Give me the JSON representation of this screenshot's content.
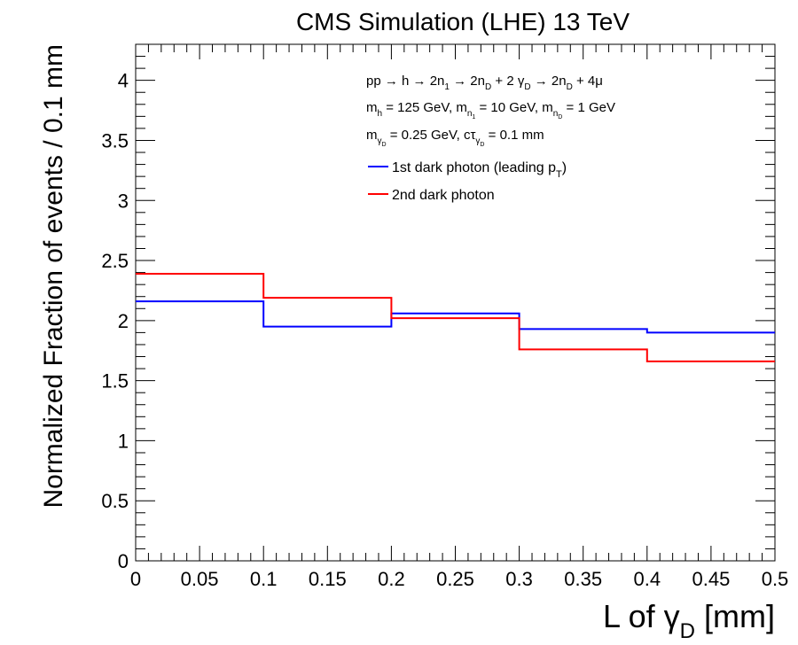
{
  "chart_data": {
    "type": "line",
    "step": true,
    "title": "CMS Simulation (LHE) 13 TeV",
    "xlabel_main": "L of γ",
    "xlabel_sub": "D",
    "xlabel_unit": " [mm]",
    "ylabel": "Normalized Fraction of events / 0.1 mm",
    "xlim": [
      0,
      0.5
    ],
    "ylim": [
      0,
      4.3
    ],
    "xticks": [
      "0",
      "0.05",
      "0.1",
      "0.15",
      "0.2",
      "0.25",
      "0.3",
      "0.35",
      "0.4",
      "0.45",
      "0.5"
    ],
    "yticks": [
      "0",
      "0.5",
      "1",
      "1.5",
      "2",
      "2.5",
      "3",
      "3.5",
      "4"
    ],
    "bin_edges": [
      0,
      0.1,
      0.2,
      0.3,
      0.4,
      0.5
    ],
    "series": [
      {
        "name": "1st dark photon (leading p",
        "name_sub": "T",
        "name_close": ")",
        "color": "#0000ff",
        "values": [
          2.16,
          1.95,
          2.06,
          1.93,
          1.9
        ]
      },
      {
        "name": "2nd dark photon",
        "name_sub": "",
        "name_close": "",
        "color": "#ff0000",
        "values": [
          2.39,
          2.19,
          2.02,
          1.76,
          1.66
        ]
      }
    ],
    "annotations": {
      "line1": "pp → h → 2n₁ → 2n_D + 2 γ_D → 2n_D + 4μ",
      "line2": "m_h = 125 GeV, m_n₁ = 10 GeV, m_n_D = 1 GeV",
      "line3": "m_γ_D = 0.25 GeV, cτ_γ_D = 0.1 mm"
    },
    "legend_position": "top-right",
    "grid": false
  }
}
